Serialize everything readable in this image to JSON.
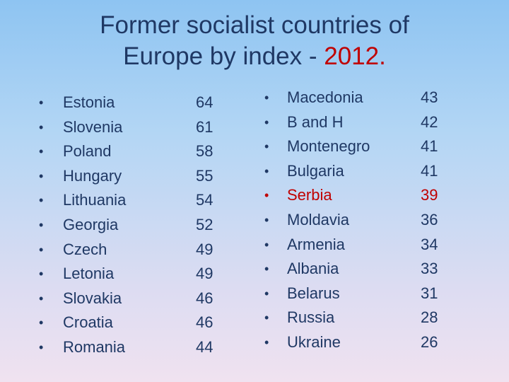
{
  "title": {
    "line1": "Former socialist countries of",
    "line2_prefix": "Europe by index - ",
    "year": "2012."
  },
  "bullet_glyph": "•",
  "left_list": [
    {
      "country": "Estonia",
      "index": "64"
    },
    {
      "country": "Slovenia",
      "index": "61"
    },
    {
      "country": "Poland",
      "index": "58"
    },
    {
      "country": "Hungary",
      "index": "55"
    },
    {
      "country": "Lithuania",
      "index": "54"
    },
    {
      "country": "Georgia",
      "index": "52"
    },
    {
      "country": "Czech",
      "index": "49"
    },
    {
      "country": "Letonia",
      "index": "49"
    },
    {
      "country": "Slovakia",
      "index": "46"
    },
    {
      "country": "Croatia",
      "index": "46"
    },
    {
      "country": "Romania",
      "index": "44"
    }
  ],
  "right_list": [
    {
      "country": "Macedonia",
      "index": "43"
    },
    {
      "country": "B and H",
      "index": "42"
    },
    {
      "country": "Montenegro",
      "index": "41"
    },
    {
      "country": "Bulgaria",
      "index": "41"
    },
    {
      "country": "Serbia",
      "index": "39",
      "highlighted": true
    },
    {
      "country": "Moldavia",
      "index": "36"
    },
    {
      "country": "Armenia",
      "index": "34"
    },
    {
      "country": "Albania",
      "index": "33"
    },
    {
      "country": "Belarus",
      "index": "31"
    },
    {
      "country": "Russia",
      "index": "28"
    },
    {
      "country": "Ukraine",
      "index": "26"
    }
  ],
  "colors": {
    "text": "#1f3864",
    "highlight": "#c00000"
  }
}
